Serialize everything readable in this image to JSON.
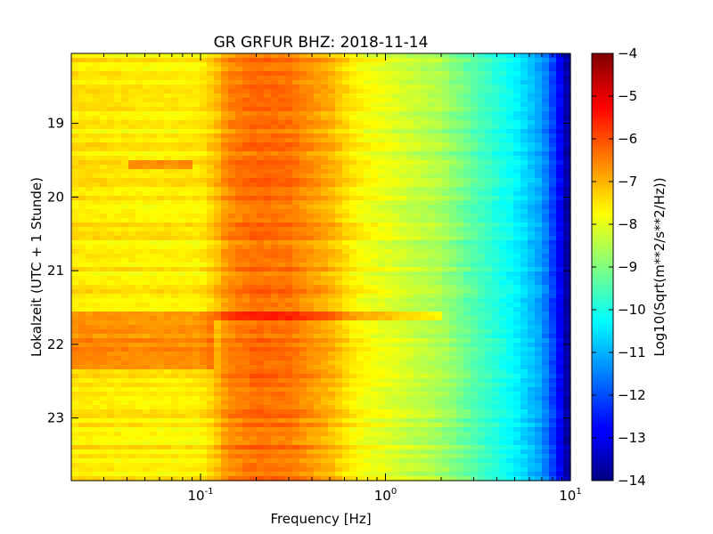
{
  "chart_data": {
    "type": "heatmap",
    "title": "GR GRFUR BHZ: 2018-11-14",
    "xlabel": "Frequency [Hz]",
    "ylabel": "Lokalzeit (UTC + 1 Stunde)",
    "colorbar_label": "Log10(Sqrt(m**2/s**2/Hz))",
    "x_scale": "log",
    "xlim": [
      0.02,
      10
    ],
    "ylim": [
      18.05,
      23.85
    ],
    "y_inverted": true,
    "x_ticks": [
      {
        "base": "10",
        "exp": "-1",
        "value": 0.1
      },
      {
        "base": "10",
        "exp": "0",
        "value": 1
      },
      {
        "base": "10",
        "exp": "1",
        "value": 10
      }
    ],
    "y_ticks": [
      "19",
      "20",
      "21",
      "22",
      "23"
    ],
    "colorbar_ticks": [
      "-4",
      "-5",
      "-6",
      "-7",
      "-8",
      "-9",
      "-10",
      "-11",
      "-12",
      "-13",
      "-14"
    ],
    "color_range": [
      -14,
      -4
    ],
    "colormap": "jet",
    "spectrum_profile": [
      {
        "f": 0.02,
        "v": -7.5
      },
      {
        "f": 0.05,
        "v": -7.6
      },
      {
        "f": 0.1,
        "v": -7.6
      },
      {
        "f": 0.12,
        "v": -7.2
      },
      {
        "f": 0.14,
        "v": -6.6
      },
      {
        "f": 0.2,
        "v": -6.3
      },
      {
        "f": 0.3,
        "v": -6.4
      },
      {
        "f": 0.5,
        "v": -7.0
      },
      {
        "f": 0.7,
        "v": -7.7
      },
      {
        "f": 1.0,
        "v": -8.0
      },
      {
        "f": 2.0,
        "v": -8.6
      },
      {
        "f": 3.0,
        "v": -9.4
      },
      {
        "f": 5.0,
        "v": -10.3
      },
      {
        "f": 7.0,
        "v": -11.2
      },
      {
        "f": 8.5,
        "v": -12.5
      },
      {
        "f": 10.0,
        "v": -14.0
      }
    ],
    "events": [
      {
        "time_start": 19.5,
        "time_end": 19.62,
        "f_min": 0.04,
        "f_max": 0.09,
        "delta": 0.8
      },
      {
        "time_start": 21.55,
        "time_end": 21.65,
        "f_min": 0.02,
        "f_max": 2.0,
        "delta": 0.9
      },
      {
        "time_start": 21.65,
        "time_end": 22.35,
        "f_min": 0.02,
        "f_max": 0.12,
        "delta": 0.9
      }
    ]
  }
}
